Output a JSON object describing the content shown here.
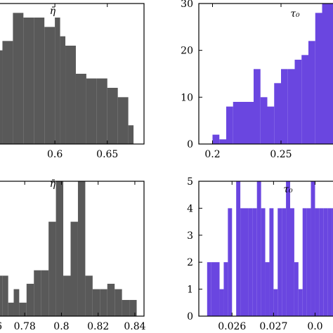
{
  "chart_data": [
    {
      "type": "bar",
      "title": "η̄",
      "color": "#595959",
      "xlim": [
        0.545,
        0.685
      ],
      "ylim": [
        0,
        30
      ],
      "xticks": [
        0.6,
        0.65
      ],
      "xtick_labels": [
        "0.6",
        "0.65"
      ],
      "yticks": [],
      "ytick_labels": [],
      "bin_edges": [
        0.545,
        0.55,
        0.56,
        0.57,
        0.58,
        0.59,
        0.6,
        0.605,
        0.61,
        0.62,
        0.63,
        0.64,
        0.65,
        0.66,
        0.67,
        0.675
      ],
      "values": [
        20,
        22,
        28,
        27,
        27,
        25,
        27,
        23,
        21,
        15,
        14,
        14,
        12,
        10,
        4
      ]
    },
    {
      "type": "bar",
      "title": "τ₀",
      "color": "#6a46e0",
      "xlim": [
        0.19,
        0.29
      ],
      "ylim": [
        0,
        30
      ],
      "xticks": [
        0.2,
        0.25
      ],
      "xtick_labels": [
        "0.2",
        "0.25"
      ],
      "yticks": [
        0,
        10,
        20,
        30
      ],
      "ytick_labels": [
        "0",
        "10",
        "20",
        "30"
      ],
      "bin_edges": [
        0.2,
        0.205,
        0.21,
        0.215,
        0.22,
        0.23,
        0.235,
        0.24,
        0.245,
        0.25,
        0.255,
        0.26,
        0.265,
        0.27,
        0.275,
        0.28,
        0.29
      ],
      "values": [
        2,
        1,
        8,
        9,
        9,
        16,
        10,
        8,
        13,
        16,
        16,
        18,
        19,
        22,
        28,
        30
      ]
    },
    {
      "type": "bar",
      "title": "η̄",
      "color": "#595959",
      "xlim": [
        0.765,
        0.845
      ],
      "ylim": [
        0,
        5
      ],
      "xticks": [
        0.78,
        0.8,
        0.82,
        0.84
      ],
      "xtick_labels": [
        "0.78",
        "0.8",
        "0.82",
        "0.84"
      ],
      "yticks": [],
      "ytick_labels": [],
      "left_clipped_label": "6",
      "bin_edges": [
        0.765,
        0.768,
        0.771,
        0.774,
        0.777,
        0.781,
        0.785,
        0.789,
        0.793,
        0.797,
        0.801,
        0.805,
        0.809,
        0.813,
        0.817,
        0.821,
        0.825,
        0.829,
        0.833,
        0.837,
        0.841
      ],
      "values": [
        1.5,
        1.5,
        0.5,
        1,
        0.5,
        1.2,
        1.7,
        1.7,
        3.5,
        5,
        1.5,
        3.5,
        5,
        1.5,
        1,
        1,
        1.2,
        1,
        0.6,
        0.6
      ]
    },
    {
      "type": "bar",
      "title": "τ₀",
      "color": "#6a46e0",
      "xlim": [
        0.0252,
        0.0285
      ],
      "ylim": [
        0,
        5
      ],
      "xticks": [
        0.026,
        0.027,
        0.028
      ],
      "xtick_labels": [
        "0.026",
        "0.027",
        "0.0"
      ],
      "yticks": [
        0,
        1,
        2,
        3,
        4,
        5
      ],
      "ytick_labels": [
        "0",
        "1",
        "2",
        "3",
        "4",
        "5"
      ],
      "bin_edges": [
        0.0252,
        0.0254,
        0.0255,
        0.0257,
        0.0258,
        0.0259,
        0.026,
        0.0261,
        0.0262,
        0.0263,
        0.0264,
        0.0265,
        0.0266,
        0.0267,
        0.0268,
        0.0269,
        0.027,
        0.0271,
        0.0272,
        0.0273,
        0.0274,
        0.0275,
        0.0276,
        0.0277,
        0.0278,
        0.0279,
        0.028,
        0.0281,
        0.0282,
        0.0283,
        0.0284,
        0.0285
      ],
      "values": [
        0,
        2,
        2,
        1,
        2,
        4,
        0,
        5,
        4,
        4,
        4,
        4,
        5,
        4,
        2,
        4,
        1,
        4,
        4,
        5,
        4,
        2,
        1,
        4,
        4,
        5,
        4,
        4,
        4,
        4,
        4
      ]
    }
  ]
}
